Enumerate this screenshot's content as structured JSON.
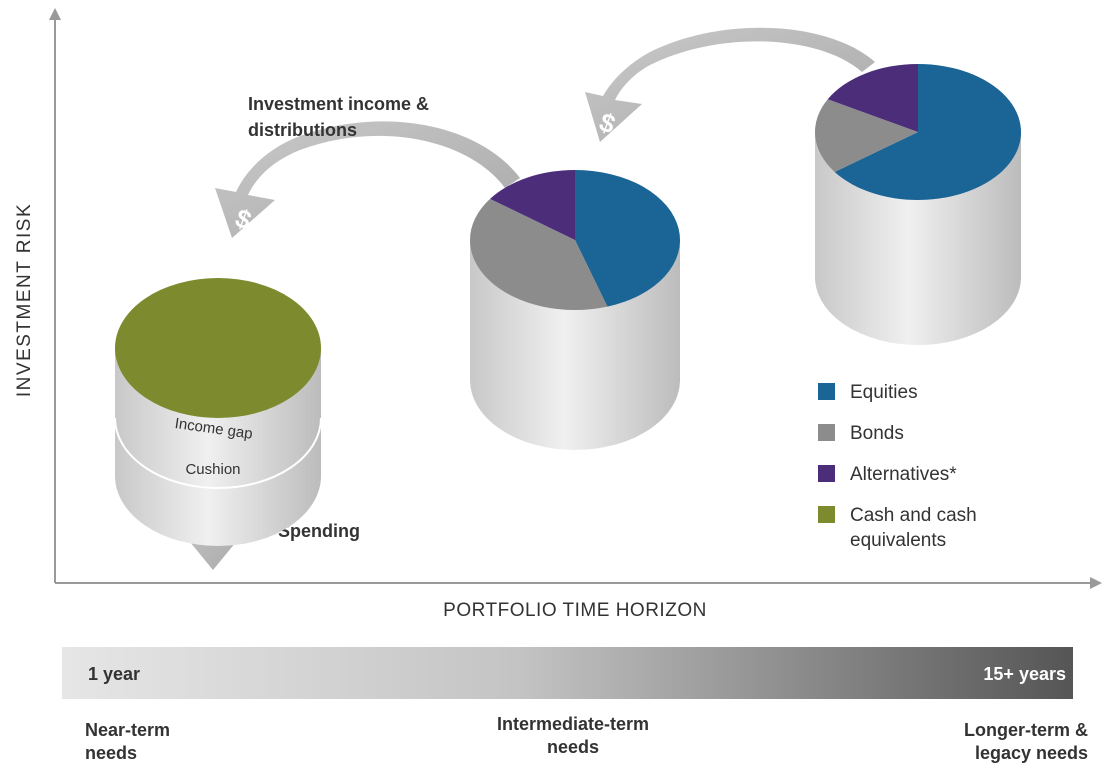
{
  "axes": {
    "y_label": "INVESTMENT RISK",
    "x_label": "PORTFOLIO TIME HORIZON"
  },
  "legend": [
    {
      "name": "Equities",
      "color": "#1a6496"
    },
    {
      "name": "Bonds",
      "color": "#8c8c8c"
    },
    {
      "name": "Alternatives*",
      "color": "#4b2d7a"
    },
    {
      "name": [
        "Cash and cash",
        "equivalents"
      ],
      "color": "#7d8a2e"
    }
  ],
  "buckets": [
    {
      "values": [
        0,
        0,
        0,
        100
      ],
      "layers": [
        "Income gap",
        "Cushion"
      ]
    },
    {
      "values": [
        45,
        40,
        15,
        0
      ]
    },
    {
      "values": [
        65,
        18,
        17,
        0
      ]
    }
  ],
  "annotations": {
    "income": [
      "Investment income &",
      "distributions"
    ],
    "spending": "Spending",
    "dollar": "$"
  },
  "time_bar": {
    "start": "1 year",
    "end": "15+ years"
  },
  "horizons": [
    [
      "Near-term",
      "needs"
    ],
    [
      "Intermediate-term",
      "needs"
    ],
    [
      "Longer-term &",
      "legacy needs"
    ]
  ]
}
